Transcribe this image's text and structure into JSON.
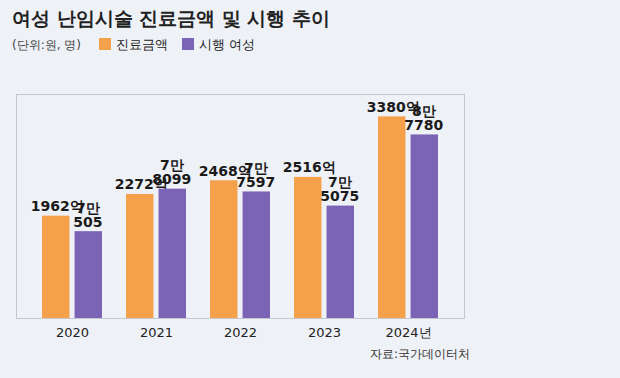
{
  "chart_data": {
    "type": "bar",
    "title": "여성 난임시술 진료금액 및 시행 추이",
    "subtitle": "(단위:원, 명)",
    "caption": "자료:국가데이터처",
    "categories": [
      "2020",
      "2021",
      "2022",
      "2023",
      "2024년"
    ],
    "series": [
      {
        "name": "진료금액",
        "color": "#f5a04a",
        "values": [
          1962,
          2272,
          2468,
          2516,
          3380
        ],
        "value_labels": [
          "1962억",
          "2272억",
          "2468억",
          "2516억",
          "3380억"
        ]
      },
      {
        "name": "시행 여성",
        "color": "#7b64b5",
        "values": [
          70505,
          78099,
          77597,
          75075,
          87780
        ],
        "value_labels": [
          "7만\n505",
          "7만\n8099",
          "7만\n7597",
          "7만\n5075",
          "8만\n7780"
        ],
        "axis": "y2"
      }
    ],
    "ylim": [
      500,
      3700
    ],
    "yticks": [],
    "y2lim": [
      55000,
      95000
    ],
    "y2ticks": [],
    "data_labels": true,
    "tick_labels": "x",
    "legend": "top"
  }
}
